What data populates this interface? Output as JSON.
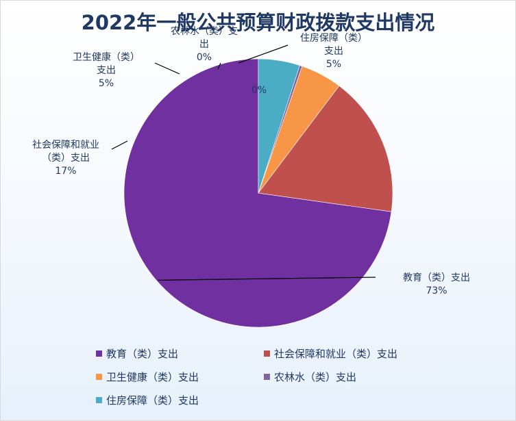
{
  "chart_data": {
    "type": "pie",
    "title": "2022年一般公共预算财政拨款支出情况",
    "categories": [
      "教育（类）支出",
      "社会保障和就业（类）支出",
      "卫生健康（类）支出",
      "农林水（类）支出",
      "住房保障（类）支出"
    ],
    "values": [
      73,
      17,
      5,
      0.3,
      5
    ],
    "percent_labels": [
      "73%",
      "17%",
      "5%",
      "0%",
      "5%"
    ],
    "extra_label": "0%",
    "colors": [
      "#7030a0",
      "#c0504d",
      "#f79646",
      "#8064a2",
      "#4bacc6"
    ],
    "start_angle": "12 o'clock, counterclockwise",
    "legend_position": "bottom"
  }
}
